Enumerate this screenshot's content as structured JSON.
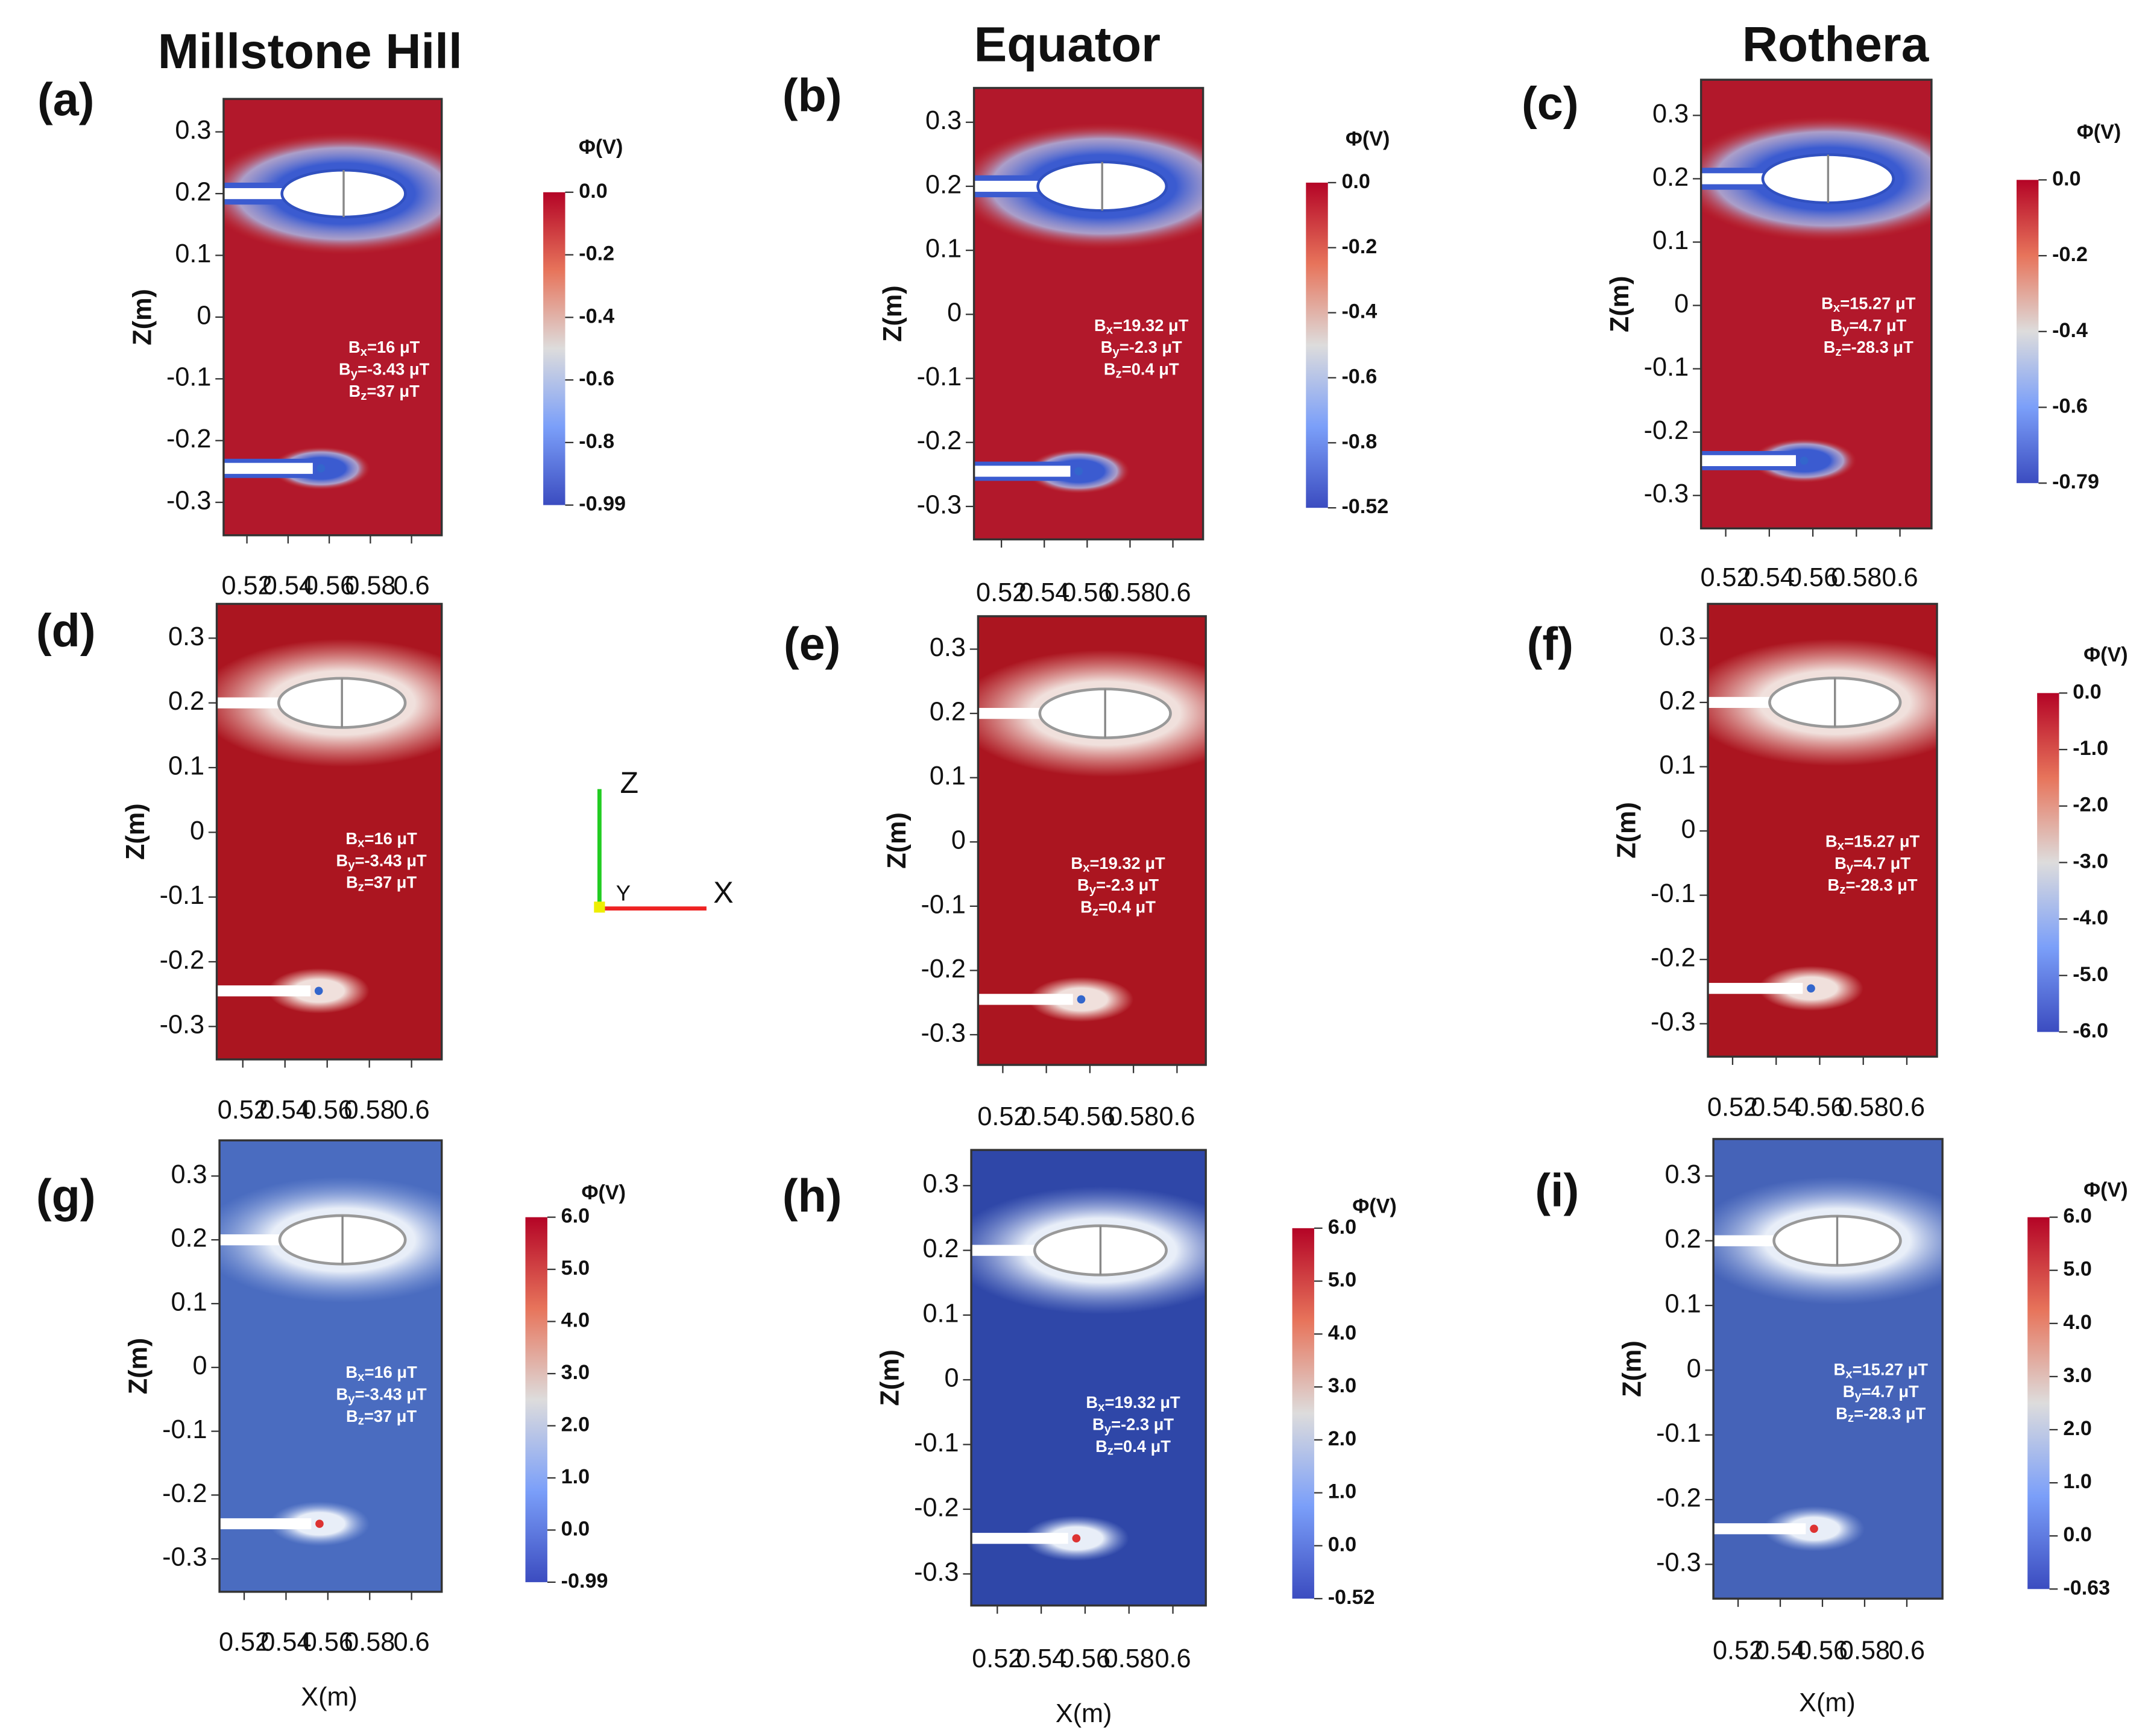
{
  "columns": [
    "Millstone Hill",
    "Equator",
    "Rothera"
  ],
  "axis_labels": {
    "z": "Z(m)",
    "x": "X(m)"
  },
  "x_ticks": [
    "0.52",
    "0.54",
    "0.56",
    "0.58",
    "0.6"
  ],
  "z_ticks": [
    "0.3",
    "0.2",
    "0.1",
    "0",
    "-0.1",
    "-0.2",
    "-0.3"
  ],
  "colorbar_title": "Φ(V)",
  "triad": {
    "z": "Z",
    "y": "Y",
    "x": "X"
  },
  "panels": [
    {
      "label": "(a)",
      "field": [
        [
          "B",
          "x",
          "=16 μT"
        ],
        [
          "B",
          "y",
          "=-3.43 μT"
        ],
        [
          "B",
          "z",
          "=37 μT"
        ]
      ],
      "colorbar": [
        "0.0",
        "-0.2",
        "-0.4",
        "-0.6",
        "-0.8",
        "-0.99"
      ]
    },
    {
      "label": "(b)",
      "field": [
        [
          "B",
          "x",
          "=19.32 μT"
        ],
        [
          "B",
          "y",
          "=-2.3 μT"
        ],
        [
          "B",
          "z",
          "=0.4 μT"
        ]
      ],
      "colorbar": [
        "0.0",
        "-0.2",
        "-0.4",
        "-0.6",
        "-0.8",
        "-0.52"
      ]
    },
    {
      "label": "(c)",
      "field": [
        [
          "B",
          "x",
          "=15.27 μT"
        ],
        [
          "B",
          "y",
          "=4.7 μT"
        ],
        [
          "B",
          "z",
          "=-28.3 μT"
        ]
      ],
      "colorbar": [
        "0.0",
        "-0.2",
        "-0.4",
        "-0.6",
        "-0.79"
      ]
    },
    {
      "label": "(d)",
      "field": [
        [
          "B",
          "x",
          "=16 μT"
        ],
        [
          "B",
          "y",
          "=-3.43 μT"
        ],
        [
          "B",
          "z",
          "=37 μT"
        ]
      ],
      "colorbar": []
    },
    {
      "label": "(e)",
      "field": [
        [
          "B",
          "x",
          "=19.32 μT"
        ],
        [
          "B",
          "y",
          "=-2.3 μT"
        ],
        [
          "B",
          "z",
          "=0.4 μT"
        ]
      ],
      "colorbar": []
    },
    {
      "label": "(f)",
      "field": [
        [
          "B",
          "x",
          "=15.27 μT"
        ],
        [
          "B",
          "y",
          "=4.7 μT"
        ],
        [
          "B",
          "z",
          "=-28.3 μT"
        ]
      ],
      "colorbar": [
        "0.0",
        "-1.0",
        "-2.0",
        "-3.0",
        "-4.0",
        "-5.0",
        "-6.0"
      ]
    },
    {
      "label": "(g)",
      "field": [
        [
          "B",
          "x",
          "=16 μT"
        ],
        [
          "B",
          "y",
          "=-3.43 μT"
        ],
        [
          "B",
          "z",
          "=37 μT"
        ]
      ],
      "colorbar": [
        "6.0",
        "5.0",
        "4.0",
        "3.0",
        "2.0",
        "1.0",
        "0.0",
        "-0.99"
      ]
    },
    {
      "label": "(h)",
      "field": [
        [
          "B",
          "x",
          "=19.32 μT"
        ],
        [
          "B",
          "y",
          "=-2.3 μT"
        ],
        [
          "B",
          "z",
          "=0.4 μT"
        ]
      ],
      "colorbar": [
        "6.0",
        "5.0",
        "4.0",
        "3.0",
        "2.0",
        "1.0",
        "0.0",
        "-0.52"
      ]
    },
    {
      "label": "(i)",
      "field": [
        [
          "B",
          "x",
          "=15.27 μT"
        ],
        [
          "B",
          "y",
          "=4.7 μT"
        ],
        [
          "B",
          "z",
          "=-28.3 μT"
        ]
      ],
      "colorbar": [
        "6.0",
        "5.0",
        "4.0",
        "3.0",
        "2.0",
        "1.0",
        "0.0",
        "-0.63"
      ]
    }
  ]
}
